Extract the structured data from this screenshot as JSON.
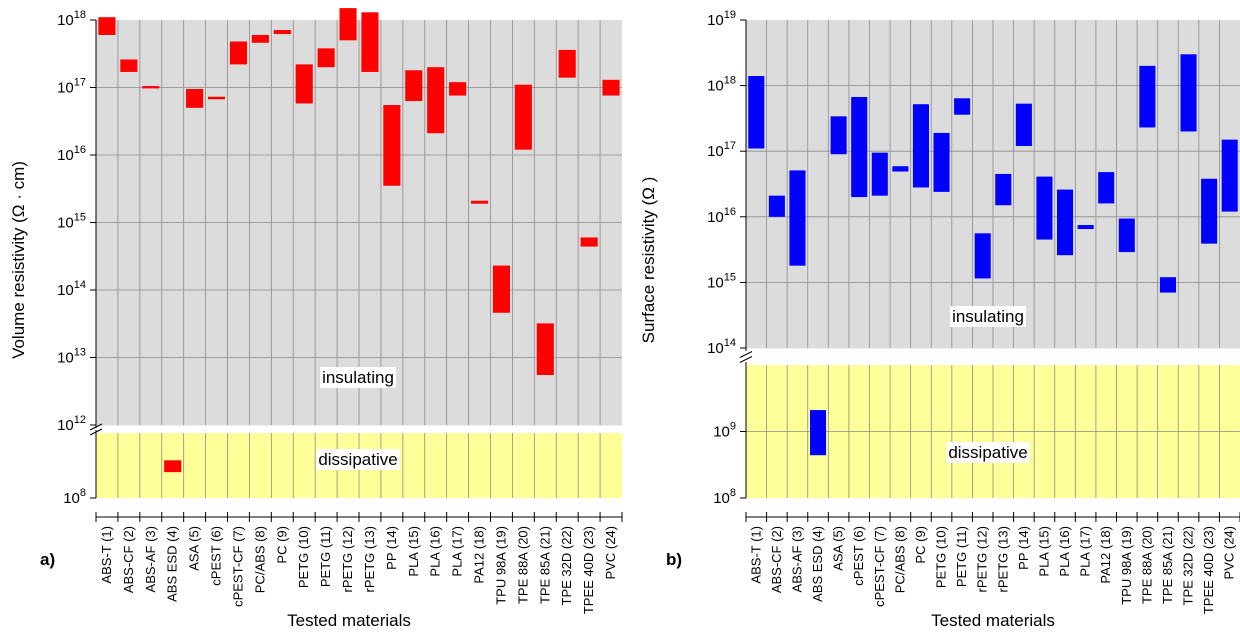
{
  "chart_data": [
    {
      "panel_label": "a)",
      "type": "range-bar",
      "xlabel": "Tested materials",
      "ylabel": "Volume resistivity (Ω · cm)",
      "yscale": "log",
      "y_break": [
        1000000000.0,
        1000000000000.0
      ],
      "ylim": [
        100000000.0,
        1e+18
      ],
      "y_ticks": [
        {
          "base": "10",
          "exp": "8",
          "value": 100000000.0
        },
        {
          "base": "10",
          "exp": "12",
          "value": 1000000000000.0
        },
        {
          "base": "10",
          "exp": "13",
          "value": 10000000000000.0
        },
        {
          "base": "10",
          "exp": "14",
          "value": 100000000000000.0
        },
        {
          "base": "10",
          "exp": "15",
          "value": 1000000000000000.0
        },
        {
          "base": "10",
          "exp": "16",
          "value": 1e+16
        },
        {
          "base": "10",
          "exp": "17",
          "value": 1e+17
        },
        {
          "base": "10",
          "exp": "18",
          "value": 1e+18
        }
      ],
      "zones": [
        {
          "label": "insulating",
          "color": "#dcdcdc"
        },
        {
          "label": "dissipative",
          "color": "#ffff99"
        }
      ],
      "bar_color": "#ff0000",
      "grid": true,
      "categories": [
        "ABS-T (1)",
        "ABS-CF (2)",
        "ABS-AF (3)",
        "ABS ESD (4)",
        "ASA (5)",
        "cPEST (6)",
        "cPEST-CF (7)",
        "PC/ABS (8)",
        "PC (9)",
        "PETG (10)",
        "PETG (11)",
        "rPETG (12)",
        "rPETG (13)",
        "PP (14)",
        "PLA (15)",
        "PLA (16)",
        "PLA (17)",
        "PA12 (18)",
        "TPU 98A (19)",
        "TPE 88A (20)",
        "TPE 85A (21)",
        "TPE 32D (22)",
        "TPEE 40D (23)",
        "PVC (24)"
      ],
      "ranges": [
        [
          6e+17,
          1.1e+18
        ],
        [
          1.7e+17,
          2.6e+17
        ],
        [
          9.7e+16,
          1.05e+17
        ],
        [
          250000000.0,
          380000000.0
        ],
        [
          5e+16,
          9.5e+16
        ],
        [
          6.7e+16,
          7.3e+16
        ],
        [
          2.2e+17,
          4.8e+17
        ],
        [
          4.6e+17,
          6e+17
        ],
        [
          6.2e+17,
          7.1e+17
        ],
        [
          5.8e+16,
          2.2e+17
        ],
        [
          2e+17,
          3.8e+17
        ],
        [
          5e+17,
          1.5e+18
        ],
        [
          1.7e+17,
          1.3e+18
        ],
        [
          3500000000000000.0,
          5.5e+16
        ],
        [
          6.3e+16,
          1.8e+17
        ],
        [
          2.1e+16,
          2e+17
        ],
        [
          7.6e+16,
          1.2e+17
        ],
        [
          1900000000000000.0,
          2100000000000000.0
        ],
        [
          46000000000000.0,
          230000000000000.0
        ],
        [
          1.2e+16,
          1.1e+17
        ],
        [
          5500000000000.0,
          32000000000000.0
        ],
        [
          1.4e+17,
          3.6e+17
        ],
        [
          440000000000000.0,
          600000000000000.0
        ],
        [
          7.6e+16,
          1.3e+17
        ]
      ]
    },
    {
      "panel_label": "b)",
      "type": "range-bar",
      "xlabel": "Tested materials",
      "ylabel": "Surface resistivity (Ω )",
      "yscale": "log",
      "y_break": [
        10000000000.0,
        100000000000000.0
      ],
      "ylim": [
        100000000.0,
        1e+19
      ],
      "y_ticks": [
        {
          "base": "10",
          "exp": "8",
          "value": 100000000.0
        },
        {
          "base": "10",
          "exp": "9",
          "value": 1000000000.0
        },
        {
          "base": "10",
          "exp": "14",
          "value": 100000000000000.0
        },
        {
          "base": "10",
          "exp": "15",
          "value": 1000000000000000.0
        },
        {
          "base": "10",
          "exp": "16",
          "value": 1e+16
        },
        {
          "base": "10",
          "exp": "17",
          "value": 1e+17
        },
        {
          "base": "10",
          "exp": "18",
          "value": 1e+18
        },
        {
          "base": "10",
          "exp": "19",
          "value": 1e+19
        }
      ],
      "zones": [
        {
          "label": "insulating",
          "color": "#dcdcdc"
        },
        {
          "label": "dissipative",
          "color": "#ffff99"
        }
      ],
      "bar_color": "#0000ff",
      "grid": true,
      "categories": [
        "ABS-T (1)",
        "ABS-CF (2)",
        "ABS-AF (3)",
        "ABS ESD (4)",
        "ASA (5)",
        "cPEST (6)",
        "cPEST-CF (7)",
        "PC/ABS (8)",
        "PC (9)",
        "PETG (10)",
        "PETG (11)",
        "rPETG (12)",
        "rPETG (13)",
        "PP (14)",
        "PLA (15)",
        "PLA (16)",
        "PLA (17)",
        "PA12 (18)",
        "TPU 98A (19)",
        "TPE 88A (20)",
        "TPE 85A (21)",
        "TPE 32D (22)",
        "TPEE 40D (23)",
        "PVC (24)"
      ],
      "ranges": [
        [
          1.1e+17,
          1.4e+18
        ],
        [
          1e+16,
          2.1e+16
        ],
        [
          1800000000000000.0,
          5.1e+16
        ],
        [
          440000000.0,
          2100000000.0
        ],
        [
          9e+16,
          3.4e+17
        ],
        [
          2e+16,
          6.7e+17
        ],
        [
          2.1e+16,
          9.5e+16
        ],
        [
          4.9e+16,
          5.9e+16
        ],
        [
          2.8e+16,
          5.2e+17
        ],
        [
          2.4e+16,
          1.9e+17
        ],
        [
          3.6e+17,
          6.4e+17
        ],
        [
          1150000000000000.0,
          5600000000000000.0
        ],
        [
          1.5e+16,
          4.5e+16
        ],
        [
          1.2e+17,
          5.3e+17
        ],
        [
          4500000000000000.0,
          4.1e+16
        ],
        [
          2600000000000000.0,
          2.6e+16
        ],
        [
          6500000000000000.0,
          7500000000000000.0
        ],
        [
          1.6e+16,
          4.8e+16
        ],
        [
          2900000000000000.0,
          9400000000000000.0
        ],
        [
          2.3e+17,
          2e+18
        ],
        [
          700000000000000.0,
          1200000000000000.0
        ],
        [
          2e+17,
          3e+18
        ],
        [
          3900000000000000.0,
          3.8e+16
        ],
        [
          1.2e+16,
          1.5e+17
        ]
      ]
    }
  ]
}
